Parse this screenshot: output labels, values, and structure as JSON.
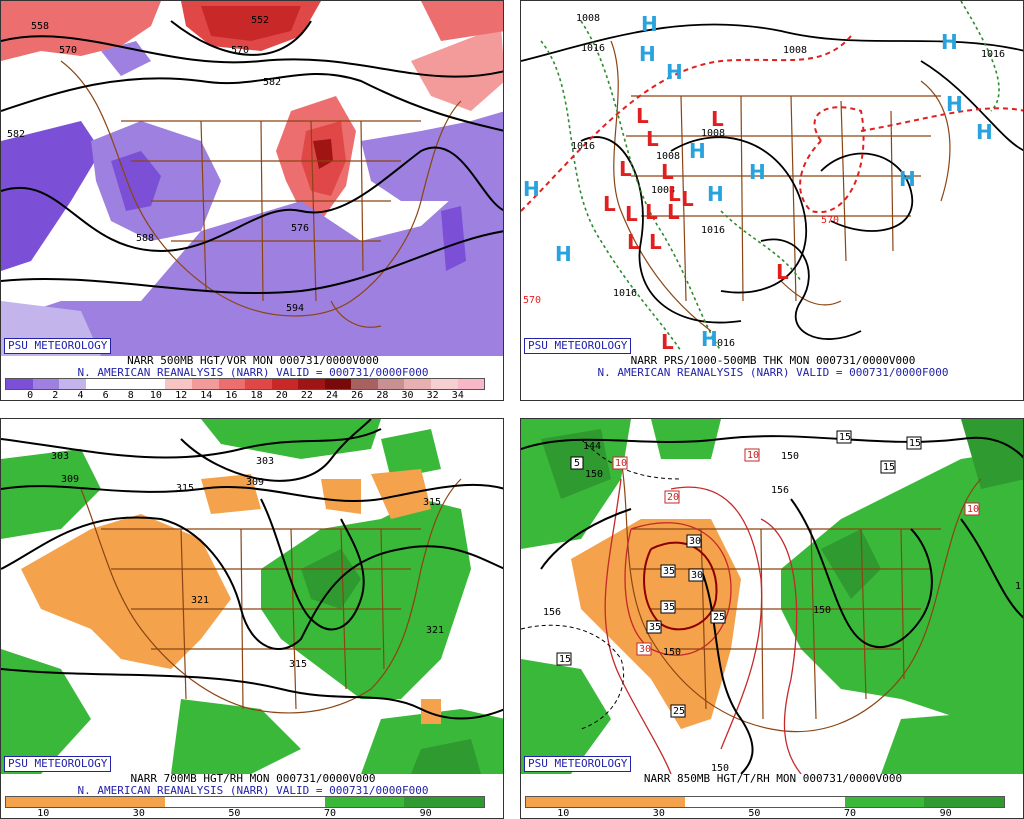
{
  "panels": [
    {
      "badge": "PSU METEOROLOGY",
      "caption1": "NARR 500MB HGT/VOR MON 000731/0000V000",
      "caption2": "N. AMERICAN REANALYSIS (NARR) VALID = 000731/0000F000",
      "colorbar": {
        "colors": [
          "#7b50d6",
          "#9d80e0",
          "#c3b4ec",
          "#ffffff",
          "#ffffff",
          "#ffffff",
          "#f9c4c4",
          "#f39a9a",
          "#ec6e6e",
          "#e04848",
          "#c82828",
          "#a01414",
          "#7a0a0a",
          "#a86060",
          "#c89090",
          "#e8b0b0",
          "#f6d0d0",
          "#f8b8c8"
        ],
        "ticks": [
          "0",
          "2",
          "4",
          "6",
          "8",
          "10",
          "12",
          "14",
          "16",
          "18",
          "20",
          "22",
          "24",
          "26",
          "28",
          "30",
          "32",
          "34"
        ]
      },
      "contour_labels": [
        "558",
        "570",
        "582",
        "552",
        "570",
        "582",
        "576",
        "588",
        "594"
      ]
    },
    {
      "badge": "PSU METEOROLOGY",
      "caption1": "NARR PRS/1000-500MB THK MON 000731/0000V000",
      "caption2": "N. AMERICAN REANALYSIS (NARR) VALID = 000731/0000F000",
      "highs": [
        "H",
        "H",
        "H",
        "H",
        "H",
        "H",
        "H",
        "H",
        "H",
        "H",
        "H",
        "H",
        "H"
      ],
      "lows": [
        "L",
        "L",
        "L",
        "L",
        "L",
        "L",
        "L",
        "L",
        "L",
        "L",
        "L",
        "L",
        "L",
        "L",
        "L"
      ],
      "contour_labels": [
        "1008",
        "1016",
        "1008",
        "1016",
        "1008",
        "1008",
        "1016",
        "1016",
        "1016",
        "570",
        "570",
        "1008",
        "1016"
      ]
    },
    {
      "badge": "PSU METEOROLOGY",
      "caption1": "NARR 700MB HGT/RH MON 000731/0000V000",
      "caption2": "N. AMERICAN REANALYSIS (NARR) VALID = 000731/0000F000",
      "colorbar": {
        "colors": [
          "#f4a24c",
          "#f4a24c",
          "#f4a24c",
          "#f4a24c",
          "#ffffff",
          "#ffffff",
          "#ffffff",
          "#ffffff",
          "#3ab83a",
          "#3ab83a",
          "#2f9a2f",
          "#2f9a2f"
        ],
        "ticks": [
          "10",
          "30",
          "50",
          "70",
          "90"
        ]
      },
      "contour_labels": [
        "303",
        "309",
        "303",
        "309",
        "315",
        "315",
        "321",
        "321",
        "315"
      ]
    },
    {
      "badge": "PSU METEOROLOGY",
      "caption1": "NARR 850MB HGT/T/RH MON 000731/0000V000",
      "caption2": "",
      "colorbar": {
        "colors": [
          "#f4a24c",
          "#f4a24c",
          "#f4a24c",
          "#f4a24c",
          "#ffffff",
          "#ffffff",
          "#ffffff",
          "#ffffff",
          "#3ab83a",
          "#3ab83a",
          "#2f9a2f",
          "#2f9a2f"
        ],
        "ticks": [
          "10",
          "30",
          "50",
          "70",
          "90"
        ]
      },
      "contour_labels": [
        "144",
        "150",
        "156",
        "150",
        "156",
        "150",
        "150",
        "150",
        "1"
      ],
      "temp_labels": [
        "5",
        "10",
        "10",
        "15",
        "15",
        "15",
        "20",
        "30",
        "35",
        "30",
        "35",
        "35",
        "25",
        "30",
        "15",
        "25",
        "10"
      ]
    }
  ]
}
